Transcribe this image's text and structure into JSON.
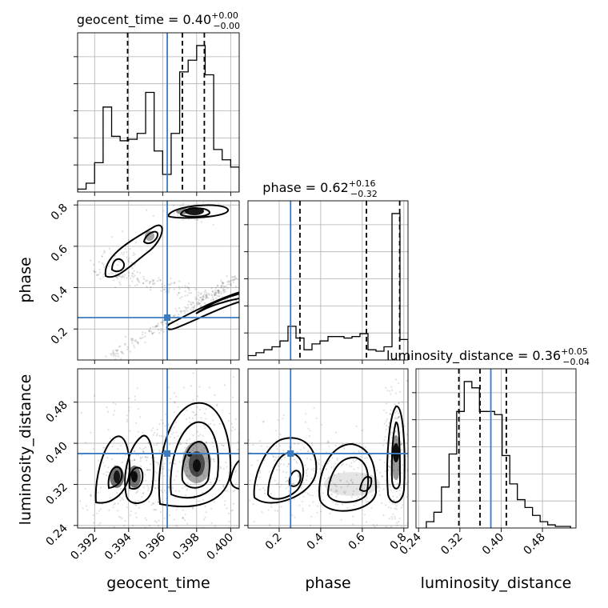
{
  "chart_data": {
    "type": "corner",
    "parameters": [
      {
        "name": "geocent_time",
        "axis_label": "geocent_time",
        "range": [
          0.391,
          0.4005
        ],
        "ticks": [
          0.392,
          0.394,
          0.396,
          0.398,
          0.4
        ],
        "tick_labels": [
          "0.392",
          "0.394",
          "0.396",
          "0.398",
          "0.400"
        ],
        "title_prefix": "geocent_time = 0.40",
        "title_upper": "+0.00",
        "title_lower": "−0.00",
        "median": 0.39716,
        "quantiles": [
          0.39394,
          0.39716,
          0.39845
        ],
        "truth": 0.39627,
        "histogram": {
          "edges": [
            0.391,
            0.3915,
            0.392,
            0.3925,
            0.393,
            0.3935,
            0.394,
            0.3945,
            0.395,
            0.3955,
            0.396,
            0.3965,
            0.397,
            0.3975,
            0.398,
            0.3985,
            0.399,
            0.3995,
            0.4,
            0.4005
          ],
          "counts": [
            0.02,
            0.06,
            0.2,
            0.58,
            0.38,
            0.35,
            0.36,
            0.4,
            0.68,
            0.28,
            0.12,
            0.4,
            0.82,
            0.9,
            1.0,
            0.8,
            0.29,
            0.22,
            0.17
          ]
        }
      },
      {
        "name": "phase",
        "axis_label": "phase",
        "range": [
          0.05,
          0.82
        ],
        "ticks": [
          0.2,
          0.4,
          0.6,
          0.8
        ],
        "tick_labels": [
          "0.2",
          "0.4",
          "0.6",
          "0.8"
        ],
        "title_prefix": "phase = 0.62",
        "title_upper": "+0.16",
        "title_lower": "−0.32",
        "median": 0.62,
        "quantiles": [
          0.3,
          0.62,
          0.78
        ],
        "truth": 0.255,
        "histogram": {
          "edges": [
            0.05,
            0.0885,
            0.127,
            0.1655,
            0.204,
            0.2425,
            0.281,
            0.3195,
            0.358,
            0.3965,
            0.435,
            0.4735,
            0.512,
            0.5505,
            0.589,
            0.6275,
            0.666,
            0.7045,
            0.743,
            0.7815,
            0.82
          ],
          "counts": [
            0.03,
            0.05,
            0.07,
            0.09,
            0.13,
            0.23,
            0.15,
            0.07,
            0.11,
            0.13,
            0.16,
            0.16,
            0.15,
            0.16,
            0.18,
            0.07,
            0.06,
            0.09,
            1.0,
            0.14
          ]
        }
      },
      {
        "name": "luminosity_distance",
        "axis_label": "luminosity_distance",
        "range": [
          0.235,
          0.545
        ],
        "ticks": [
          0.24,
          0.32,
          0.4,
          0.48
        ],
        "tick_labels": [
          "0.24",
          "0.32",
          "0.40",
          "0.48"
        ],
        "title_prefix": "luminosity_distance = 0.36",
        "title_upper": "+0.05",
        "title_lower": "−0.04",
        "median": 0.359,
        "quantiles": [
          0.318,
          0.359,
          0.41
        ],
        "truth": 0.38,
        "histogram": {
          "edges": [
            0.255,
            0.2697,
            0.2844,
            0.2991,
            0.3138,
            0.3285,
            0.3432,
            0.3579,
            0.3726,
            0.3873,
            0.402,
            0.4167,
            0.4314,
            0.4461,
            0.4608,
            0.4755,
            0.4902,
            0.5049,
            0.5196,
            0.5343
          ],
          "counts": [
            0.04,
            0.1,
            0.26,
            0.47,
            0.74,
            0.93,
            0.89,
            0.74,
            0.74,
            0.72,
            0.46,
            0.28,
            0.18,
            0.13,
            0.08,
            0.04,
            0.02,
            0.01,
            0.01
          ]
        }
      }
    ],
    "truth_point_marker": "square",
    "grid": true,
    "quantile_style": "dashed",
    "truth_color": "#3b7bbf"
  }
}
